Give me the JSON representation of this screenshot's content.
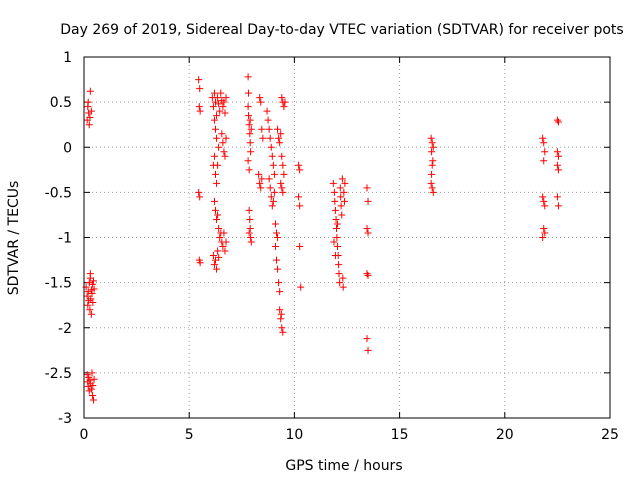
{
  "chart_data": {
    "type": "scatter",
    "title": "Day 269 of 2019, Sidereal Day-to-day VTEC variation (SDTVAR) for receiver pots",
    "xlabel": "GPS time / hours",
    "ylabel": "SDTVAR / TECUs",
    "xlim": [
      0,
      25
    ],
    "ylim": [
      -3,
      1
    ],
    "xticks": [
      0,
      5,
      10,
      15,
      20,
      25
    ],
    "yticks": [
      -3,
      -2.5,
      -2,
      -1.5,
      -1,
      -0.5,
      0,
      0.5,
      1
    ],
    "xtick_labels": [
      "0",
      "5",
      "10",
      "15",
      "20",
      "25"
    ],
    "ytick_labels": [
      "-3",
      "-2.5",
      "-2",
      "-1.5",
      "-1",
      "-0.5",
      "0",
      "0.5",
      "1"
    ],
    "grid": true,
    "marker": "+",
    "color": "#ff0000",
    "series": [
      {
        "name": "SDTVAR",
        "points": [
          [
            0.15,
            0.3
          ],
          [
            0.18,
            0.45
          ],
          [
            0.2,
            0.5
          ],
          [
            0.22,
            0.38
          ],
          [
            0.25,
            0.25
          ],
          [
            0.3,
            0.62
          ],
          [
            0.35,
            0.4
          ],
          [
            0.28,
            0.33
          ],
          [
            0.1,
            -1.55
          ],
          [
            0.15,
            -1.65
          ],
          [
            0.18,
            -1.75
          ],
          [
            0.2,
            -1.6
          ],
          [
            0.22,
            -1.7
          ],
          [
            0.25,
            -1.5
          ],
          [
            0.28,
            -1.8
          ],
          [
            0.3,
            -1.45
          ],
          [
            0.32,
            -1.68
          ],
          [
            0.35,
            -1.58
          ],
          [
            0.38,
            -1.62
          ],
          [
            0.4,
            -1.52
          ],
          [
            0.42,
            -1.72
          ],
          [
            0.45,
            -1.48
          ],
          [
            0.48,
            -1.57
          ],
          [
            0.3,
            -1.4
          ],
          [
            0.35,
            -1.85
          ],
          [
            0.15,
            -2.52
          ],
          [
            0.18,
            -2.6
          ],
          [
            0.2,
            -2.65
          ],
          [
            0.22,
            -2.55
          ],
          [
            0.25,
            -2.7
          ],
          [
            0.28,
            -2.58
          ],
          [
            0.3,
            -2.62
          ],
          [
            0.35,
            -2.68
          ],
          [
            0.38,
            -2.5
          ],
          [
            0.4,
            -2.75
          ],
          [
            0.42,
            -2.64
          ],
          [
            0.45,
            -2.8
          ],
          [
            0.48,
            -2.57
          ],
          [
            5.45,
            0.75
          ],
          [
            5.5,
            0.65
          ],
          [
            5.48,
            0.45
          ],
          [
            5.52,
            0.4
          ],
          [
            5.45,
            -0.5
          ],
          [
            5.5,
            -0.55
          ],
          [
            5.48,
            -1.25
          ],
          [
            5.52,
            -1.28
          ],
          [
            6.1,
            0.55
          ],
          [
            6.15,
            0.45
          ],
          [
            6.2,
            0.6
          ],
          [
            6.25,
            0.5
          ],
          [
            6.3,
            0.35
          ],
          [
            6.35,
            0.55
          ],
          [
            6.4,
            0.48
          ],
          [
            6.45,
            0.4
          ],
          [
            6.5,
            0.6
          ],
          [
            6.55,
            0.52
          ],
          [
            6.6,
            0.45
          ],
          [
            6.65,
            0.5
          ],
          [
            6.7,
            0.38
          ],
          [
            6.75,
            0.55
          ],
          [
            6.2,
            0.3
          ],
          [
            6.25,
            0.2
          ],
          [
            6.3,
            0.1
          ],
          [
            6.4,
            0.0
          ],
          [
            6.55,
            0.15
          ],
          [
            6.6,
            0.05
          ],
          [
            6.65,
            -0.05
          ],
          [
            6.7,
            -0.1
          ],
          [
            6.75,
            0.1
          ],
          [
            6.15,
            -0.2
          ],
          [
            6.2,
            -0.1
          ],
          [
            6.25,
            -0.3
          ],
          [
            6.3,
            -0.4
          ],
          [
            6.35,
            -0.2
          ],
          [
            6.2,
            -0.6
          ],
          [
            6.25,
            -0.7
          ],
          [
            6.3,
            -0.8
          ],
          [
            6.35,
            -0.75
          ],
          [
            6.4,
            -0.9
          ],
          [
            6.45,
            -1.0
          ],
          [
            6.5,
            -0.95
          ],
          [
            6.55,
            -1.05
          ],
          [
            6.6,
            -1.1
          ],
          [
            6.65,
            -0.95
          ],
          [
            6.7,
            -1.15
          ],
          [
            6.75,
            -1.05
          ],
          [
            6.15,
            -1.2
          ],
          [
            6.2,
            -1.3
          ],
          [
            6.25,
            -1.25
          ],
          [
            6.3,
            -1.35
          ],
          [
            6.35,
            -1.15
          ],
          [
            6.4,
            -1.22
          ],
          [
            7.8,
            0.78
          ],
          [
            7.82,
            0.6
          ],
          [
            7.8,
            0.45
          ],
          [
            7.82,
            0.35
          ],
          [
            7.85,
            0.25
          ],
          [
            7.88,
            0.15
          ],
          [
            7.9,
            0.05
          ],
          [
            7.92,
            -0.05
          ],
          [
            7.8,
            -0.15
          ],
          [
            7.85,
            -0.25
          ],
          [
            7.9,
            0.3
          ],
          [
            7.95,
            0.2
          ],
          [
            7.85,
            -0.7
          ],
          [
            7.88,
            -0.8
          ],
          [
            7.9,
            -0.9
          ],
          [
            7.92,
            -1.0
          ],
          [
            7.95,
            -1.05
          ],
          [
            7.85,
            -0.95
          ],
          [
            8.35,
            0.55
          ],
          [
            8.4,
            0.5
          ],
          [
            8.45,
            0.2
          ],
          [
            8.5,
            0.1
          ],
          [
            8.3,
            -0.3
          ],
          [
            8.35,
            -0.4
          ],
          [
            8.4,
            -0.45
          ],
          [
            8.45,
            -0.35
          ],
          [
            8.7,
            0.4
          ],
          [
            8.75,
            0.3
          ],
          [
            8.8,
            0.2
          ],
          [
            8.85,
            0.1
          ],
          [
            8.9,
            0.0
          ],
          [
            8.95,
            -0.1
          ],
          [
            9.0,
            -0.2
          ],
          [
            9.05,
            -0.3
          ],
          [
            8.8,
            -0.35
          ],
          [
            8.85,
            -0.45
          ],
          [
            8.9,
            -0.55
          ],
          [
            8.95,
            -0.65
          ],
          [
            9.0,
            -0.6
          ],
          [
            9.05,
            -0.5
          ],
          [
            9.1,
            -0.85
          ],
          [
            9.15,
            -0.95
          ],
          [
            9.2,
            -1.0
          ],
          [
            9.1,
            -1.1
          ],
          [
            9.15,
            -1.25
          ],
          [
            9.2,
            -1.35
          ],
          [
            9.25,
            -1.5
          ],
          [
            9.3,
            -1.6
          ],
          [
            9.2,
            0.2
          ],
          [
            9.25,
            0.1
          ],
          [
            9.3,
            0.05
          ],
          [
            9.35,
            0.15
          ],
          [
            9.4,
            -0.1
          ],
          [
            9.45,
            -0.2
          ],
          [
            9.5,
            -0.3
          ],
          [
            9.35,
            -0.4
          ],
          [
            9.4,
            -0.45
          ],
          [
            9.45,
            -0.5
          ],
          [
            9.3,
            -1.8
          ],
          [
            9.35,
            -1.9
          ],
          [
            9.4,
            -2.0
          ],
          [
            9.45,
            -2.05
          ],
          [
            9.38,
            -1.85
          ],
          [
            9.4,
            0.55
          ],
          [
            9.45,
            0.5
          ],
          [
            9.5,
            0.45
          ],
          [
            9.55,
            0.5
          ],
          [
            10.2,
            -0.2
          ],
          [
            10.25,
            -0.25
          ],
          [
            10.2,
            -0.55
          ],
          [
            10.25,
            -0.65
          ],
          [
            10.25,
            -1.1
          ],
          [
            10.3,
            -1.55
          ],
          [
            11.85,
            -0.4
          ],
          [
            11.9,
            -0.5
          ],
          [
            11.92,
            -0.6
          ],
          [
            11.95,
            -0.7
          ],
          [
            11.98,
            -0.8
          ],
          [
            12.0,
            -0.9
          ],
          [
            12.02,
            -1.0
          ],
          [
            12.05,
            -1.1
          ],
          [
            12.08,
            -1.2
          ],
          [
            12.1,
            -1.3
          ],
          [
            12.12,
            -1.4
          ],
          [
            12.15,
            -1.5
          ],
          [
            12.18,
            -0.45
          ],
          [
            12.2,
            -0.55
          ],
          [
            12.22,
            -0.65
          ],
          [
            12.25,
            -0.75
          ],
          [
            12.28,
            -0.35
          ],
          [
            12.3,
            -1.45
          ],
          [
            12.32,
            -1.55
          ],
          [
            12.35,
            -0.5
          ],
          [
            12.38,
            -0.6
          ],
          [
            12.4,
            -0.4
          ],
          [
            11.88,
            -1.05
          ],
          [
            11.95,
            -1.2
          ],
          [
            12.05,
            -0.85
          ],
          [
            13.45,
            -0.45
          ],
          [
            13.5,
            -0.6
          ],
          [
            13.45,
            -0.9
          ],
          [
            13.5,
            -0.95
          ],
          [
            13.45,
            -1.4
          ],
          [
            13.5,
            -1.42
          ],
          [
            13.45,
            -2.12
          ],
          [
            13.5,
            -2.25
          ],
          [
            16.5,
            0.1
          ],
          [
            16.55,
            0.05
          ],
          [
            16.6,
            0.0
          ],
          [
            16.52,
            -0.05
          ],
          [
            16.58,
            -0.15
          ],
          [
            16.55,
            -0.2
          ],
          [
            16.5,
            -0.4
          ],
          [
            16.55,
            -0.45
          ],
          [
            16.6,
            -0.5
          ],
          [
            16.52,
            -0.3
          ],
          [
            21.8,
            0.1
          ],
          [
            21.85,
            0.05
          ],
          [
            21.9,
            -0.05
          ],
          [
            21.85,
            -0.15
          ],
          [
            21.8,
            -0.55
          ],
          [
            21.85,
            -0.6
          ],
          [
            21.9,
            -0.65
          ],
          [
            21.85,
            -0.9
          ],
          [
            21.8,
            -1.0
          ],
          [
            21.9,
            -0.95
          ],
          [
            22.5,
            0.3
          ],
          [
            22.55,
            0.28
          ],
          [
            22.5,
            -0.05
          ],
          [
            22.55,
            -0.1
          ],
          [
            22.5,
            -0.2
          ],
          [
            22.55,
            -0.25
          ],
          [
            22.5,
            -0.55
          ],
          [
            22.55,
            -0.65
          ]
        ]
      }
    ]
  }
}
